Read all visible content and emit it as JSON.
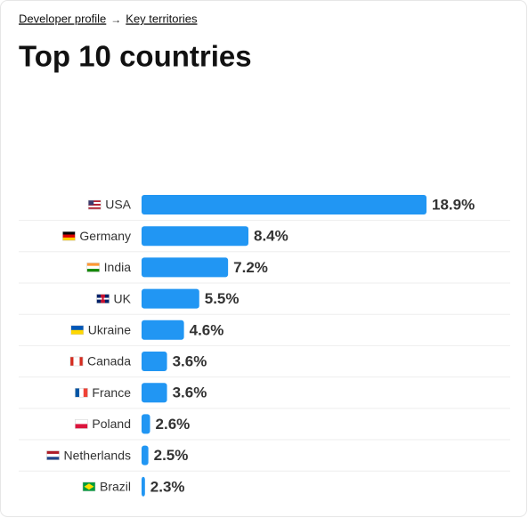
{
  "breadcrumb": {
    "items": [
      "Developer profile",
      "Key territories"
    ],
    "separator": "→"
  },
  "chart_data": {
    "type": "bar",
    "orientation": "horizontal",
    "title": "Top 10 countries",
    "categories": [
      "USA",
      "Germany",
      "India",
      "UK",
      "Ukraine",
      "Canada",
      "France",
      "Poland",
      "Netherlands",
      "Brazil"
    ],
    "values": [
      18.9,
      8.4,
      7.2,
      5.5,
      4.6,
      3.6,
      3.6,
      2.6,
      2.5,
      2.3
    ],
    "value_labels": [
      "18.9%",
      "8.4%",
      "7.2%",
      "5.5%",
      "4.6%",
      "3.6%",
      "3.6%",
      "2.6%",
      "2.5%",
      "2.3%"
    ],
    "color": "#2196f3",
    "xlim": [
      2.1,
      18.9
    ]
  }
}
